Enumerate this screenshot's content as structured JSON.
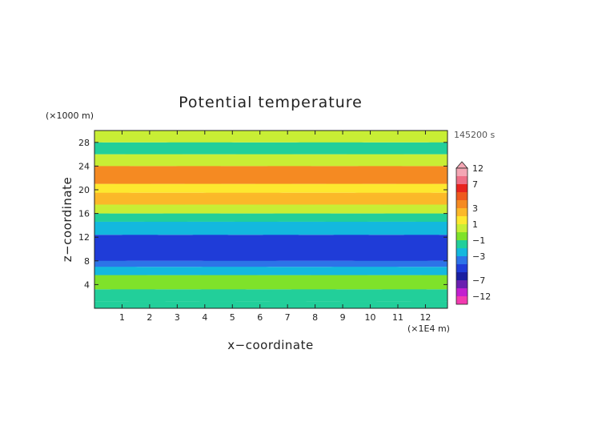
{
  "chart_data": {
    "type": "heatmap",
    "title": "Potential temperature",
    "xlabel": "x−coordinate",
    "ylabel": "z−coordinate",
    "x_unit": "(×1E4 m)",
    "y_unit": "(×1000 m)",
    "time_label": "145200 s",
    "xlim": [
      0,
      12.8
    ],
    "ylim": [
      0,
      30
    ],
    "x_ticks": [
      "1",
      "2",
      "3",
      "4",
      "5",
      "6",
      "7",
      "8",
      "9",
      "10",
      "11",
      "12"
    ],
    "y_ticks": [
      "4",
      "8",
      "12",
      "16",
      "20",
      "24",
      "28"
    ],
    "colorbar": {
      "labels": [
        "12",
        "7",
        "3",
        "1",
        "−1",
        "−3",
        "−7",
        "−12"
      ],
      "levels": [
        12,
        9,
        7,
        5,
        4,
        3,
        2,
        1,
        0,
        -1,
        -2,
        -3,
        -4,
        -5,
        -7,
        -9,
        -12
      ],
      "colors": [
        "#f4a6b4",
        "#ee6f86",
        "#e8241f",
        "#ef5a1e",
        "#f58a22",
        "#fbb829",
        "#fde82f",
        "#c8ee35",
        "#7fe22a",
        "#22cf9a",
        "#13b8de",
        "#2c74e8",
        "#1f3cd8",
        "#1a1fa0",
        "#6a1fb0",
        "#c21fcf",
        "#f23ab0"
      ]
    },
    "bands": [
      {
        "z": [
          0,
          1.2
        ],
        "value": -1
      },
      {
        "z": [
          1.2,
          3.2
        ],
        "value": -0.5
      },
      {
        "z": [
          3.2,
          5.6
        ],
        "value": 0.5
      },
      {
        "z": [
          5.6,
          7.0
        ],
        "value": -1.5
      },
      {
        "z": [
          7.0,
          8.0
        ],
        "value": -2.5
      },
      {
        "z": [
          8.0,
          12.4
        ],
        "value": -3.5
      },
      {
        "z": [
          12.4,
          14.6
        ],
        "value": -2
      },
      {
        "z": [
          14.6,
          16.0
        ],
        "value": -1
      },
      {
        "z": [
          16.0,
          17.5
        ],
        "value": 1.5
      },
      {
        "z": [
          17.5,
          19.5
        ],
        "value": 3.5
      },
      {
        "z": [
          19.5,
          21.0
        ],
        "value": 2
      },
      {
        "z": [
          21.0,
          24.0
        ],
        "value": 4
      },
      {
        "z": [
          24.0,
          26.0
        ],
        "value": 1.5
      },
      {
        "z": [
          26.0,
          28.0
        ],
        "value": -0.5
      },
      {
        "z": [
          28.0,
          30.0
        ],
        "value": 1
      }
    ]
  }
}
